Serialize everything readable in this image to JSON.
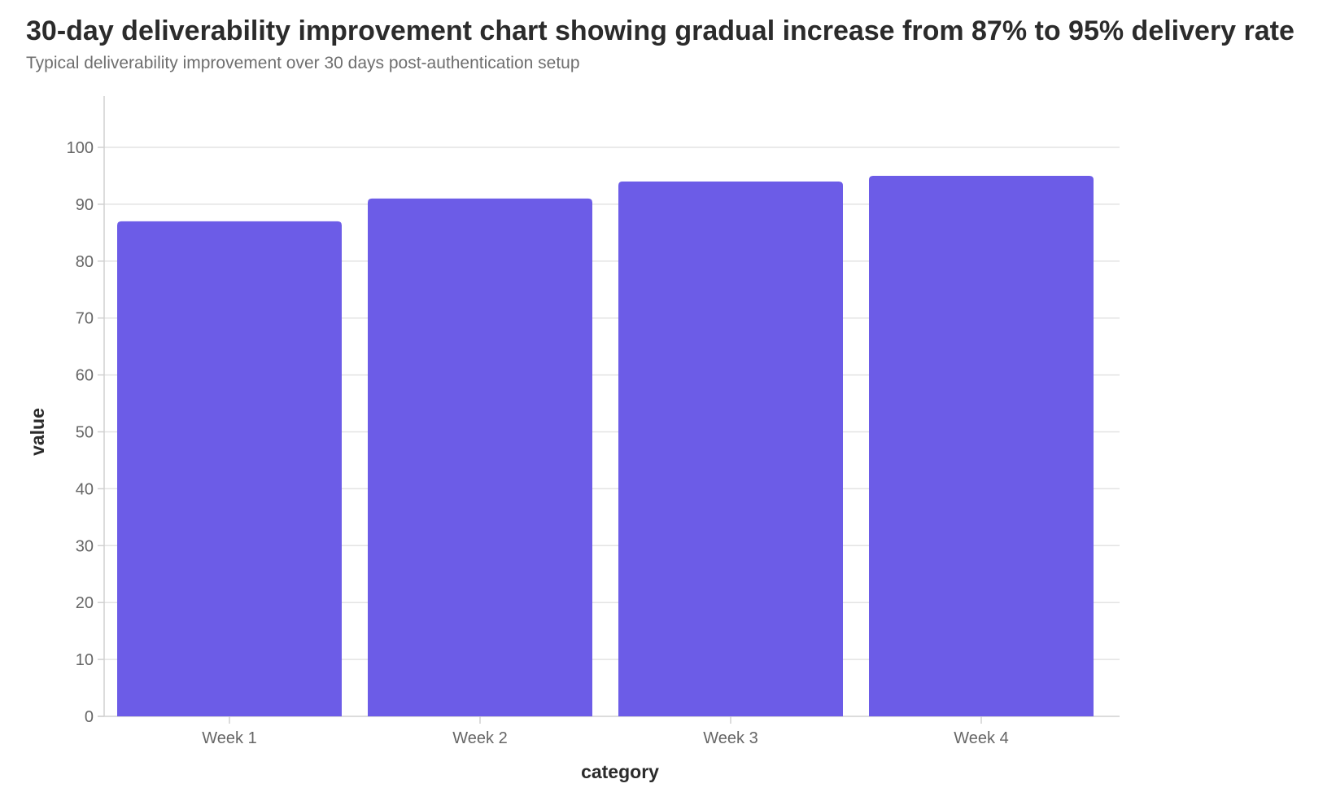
{
  "title": "30-day deliverability improvement chart showing gradual increase from 87% to 95% delivery rate",
  "subtitle": "Typical deliverability improvement over 30 days post-authentication setup",
  "chart_data": {
    "type": "bar",
    "title": "30-day deliverability improvement chart showing gradual increase from 87% to 95% delivery rate",
    "subtitle": "Typical deliverability improvement over 30 days post-authentication setup",
    "categories": [
      "Week 1",
      "Week 2",
      "Week 3",
      "Week 4"
    ],
    "values": [
      87,
      91,
      94,
      95
    ],
    "xlabel": "category",
    "ylabel": "value",
    "ylim": [
      0,
      100
    ],
    "yticks": [
      0,
      10,
      20,
      30,
      40,
      50,
      60,
      70,
      80,
      90,
      100
    ],
    "grid": true,
    "legend": "none",
    "colors": {
      "bar": "#6c5ce7",
      "grid": "#e3e3e3",
      "axis": "#d0d0d0",
      "tick_text": "#666666",
      "title_text": "#2b2b2b"
    }
  }
}
